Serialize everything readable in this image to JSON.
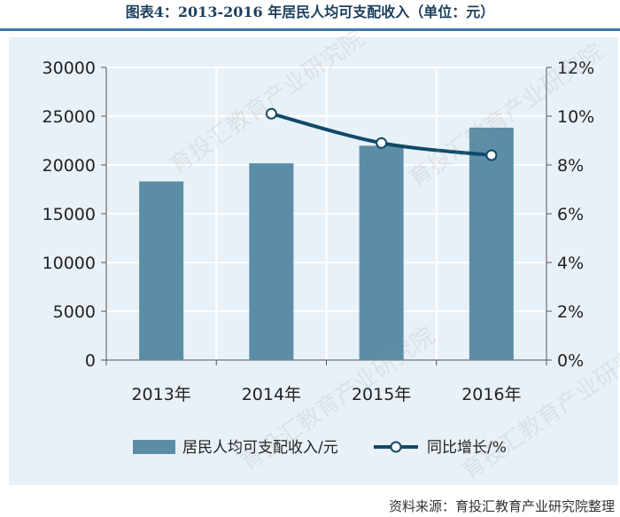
{
  "title": "图表4：2013-2016 年居民人均可支配收入（单位：元）",
  "source": "资料来源：育投汇教育产业研究院整理",
  "watermark": "育投汇教育产业研究院",
  "colors": {
    "bar": "#5b8ea6",
    "line": "#0f4a68",
    "panel": "#e9f1f8",
    "grid": "#ffffff",
    "title": "#1c3f5e",
    "rule": "#3b78ad"
  },
  "chart_data": {
    "type": "bar",
    "categories": [
      "2013年",
      "2014年",
      "2015年",
      "2016年"
    ],
    "series": [
      {
        "name": "居民人均可支配收入/元",
        "type": "bar",
        "axis": "left",
        "values": [
          18311,
          20167,
          21966,
          23821
        ]
      },
      {
        "name": "同比增长/%",
        "type": "line",
        "axis": "right",
        "values": [
          null,
          10.1,
          8.9,
          8.4
        ]
      }
    ],
    "y_left": {
      "lim": [
        0,
        30000
      ],
      "ticks": [
        "0",
        "5000",
        "10000",
        "15000",
        "20000",
        "25000",
        "30000"
      ]
    },
    "y_right": {
      "lim": [
        0,
        12
      ],
      "ticks": [
        "0%",
        "2%",
        "4%",
        "6%",
        "8%",
        "10%",
        "12%"
      ]
    },
    "grid": true,
    "legend": "bottom"
  }
}
